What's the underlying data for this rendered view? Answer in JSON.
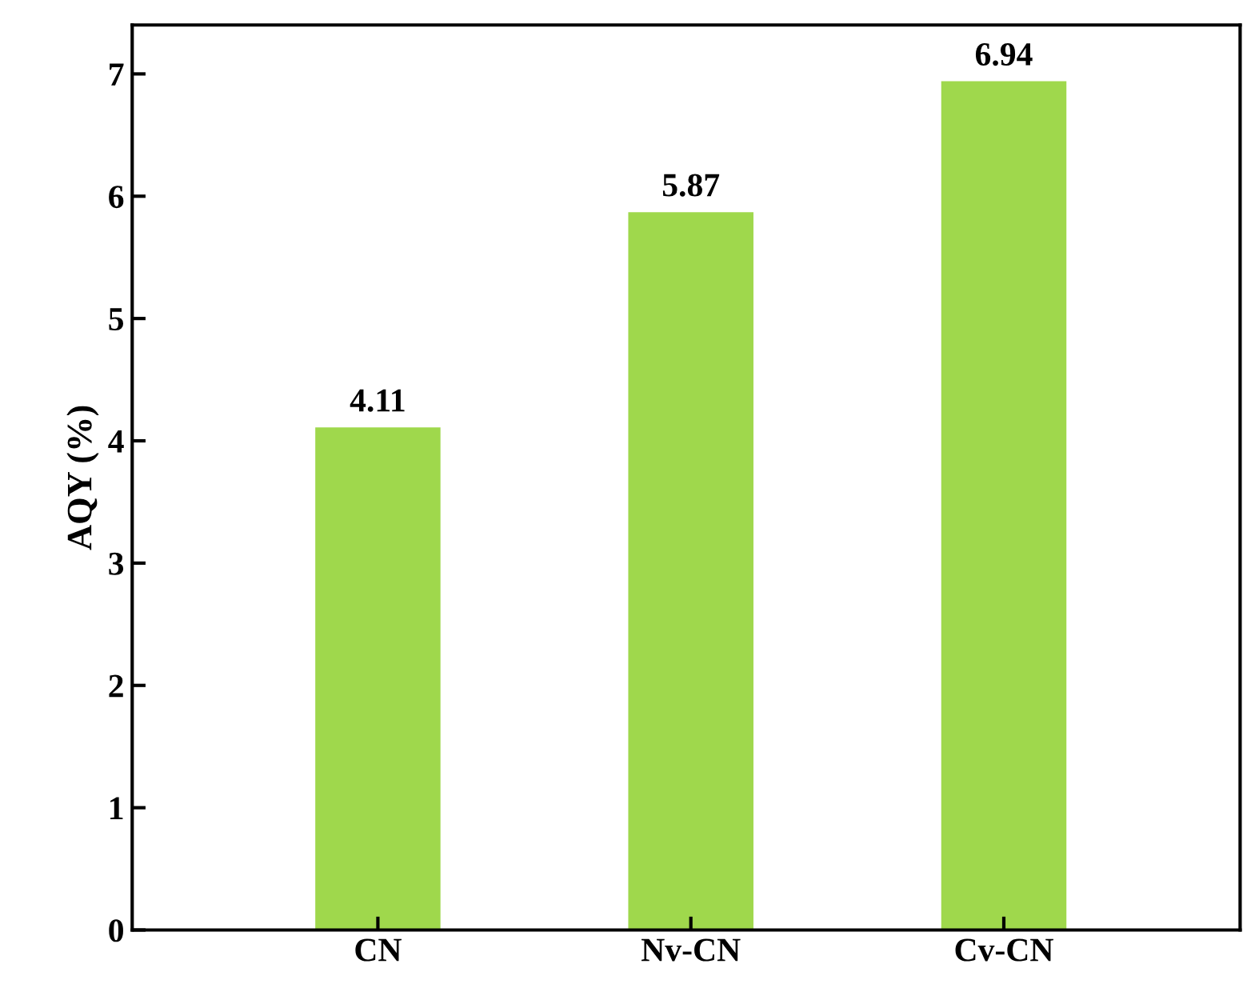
{
  "chart_data": {
    "type": "bar",
    "ylabel": "AQY (%)",
    "categories": [
      "CN",
      "Nv-CN",
      "Cv-CN"
    ],
    "values": [
      4.11,
      5.87,
      6.94
    ],
    "color": "#9fd84c",
    "ylim": [
      0,
      7.4
    ],
    "yticks": [
      0,
      1,
      2,
      3,
      4,
      5,
      6,
      7
    ],
    "data_labels": true,
    "grid": false
  }
}
